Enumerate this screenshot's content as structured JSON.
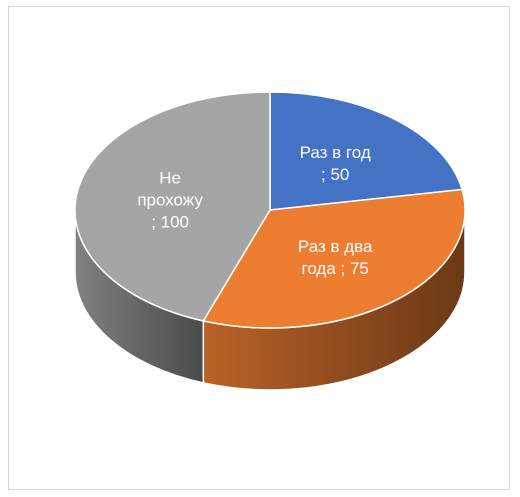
{
  "chart_data": {
    "type": "pie",
    "style": "3d",
    "title": "",
    "slices": [
      {
        "label": "Раз в год",
        "value": 50,
        "color": "#4472c4",
        "data_label_lines": [
          "Раз в год",
          "; 50"
        ]
      },
      {
        "label": "Раз в два года",
        "value": 75,
        "color": "#ed7d31",
        "data_label_lines": [
          "Раз в два",
          "года ; 75"
        ]
      },
      {
        "label": "Не прохожу",
        "value": 100,
        "color": "#a5a5a5",
        "data_label_lines": [
          "Не",
          "прохожу",
          "; 100"
        ]
      }
    ],
    "legend": "none"
  }
}
